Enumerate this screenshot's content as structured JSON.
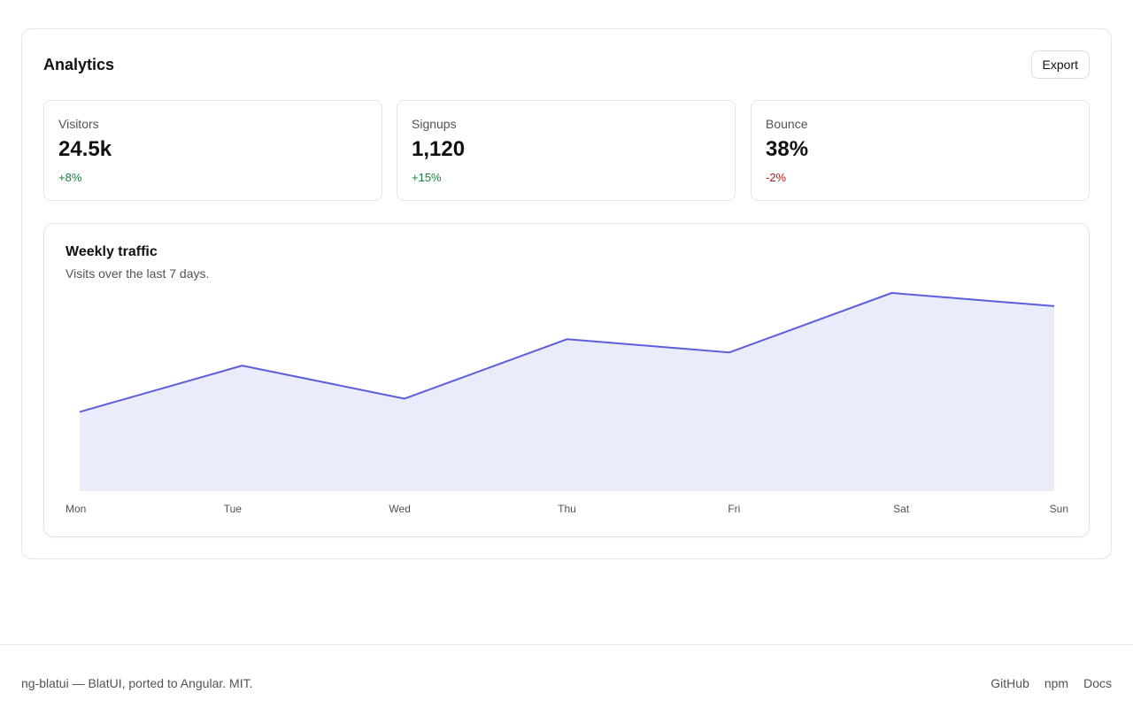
{
  "header": {
    "title": "Analytics",
    "export_label": "Export"
  },
  "stats": [
    {
      "label": "Visitors",
      "value": "24.5k",
      "delta": "+8%",
      "delta_color": "#15803d"
    },
    {
      "label": "Signups",
      "value": "1,120",
      "delta": "+15%",
      "delta_color": "#15803d"
    },
    {
      "label": "Bounce",
      "value": "38%",
      "delta": "-2%",
      "delta_color": "#b91c1c"
    }
  ],
  "chart": {
    "title": "Weekly traffic",
    "subtitle": "Visits over the last 7 days."
  },
  "chart_data": {
    "type": "area",
    "title": "Weekly traffic",
    "subtitle": "Visits over the last 7 days.",
    "categories": [
      "Mon",
      "Tue",
      "Wed",
      "Thu",
      "Fri",
      "Sat",
      "Sun"
    ],
    "series": [
      {
        "values": [
          40,
          54,
          44,
          62,
          58,
          76,
          72
        ]
      }
    ],
    "ylim": [
      16,
      76
    ],
    "grid": false,
    "line_color": "#5b5fdc",
    "fill_color": "#eaebfb"
  },
  "footer": {
    "text": "ng-blatui — BlatUI, ported to Angular. MIT.",
    "links": [
      "GitHub",
      "npm",
      "Docs"
    ]
  }
}
